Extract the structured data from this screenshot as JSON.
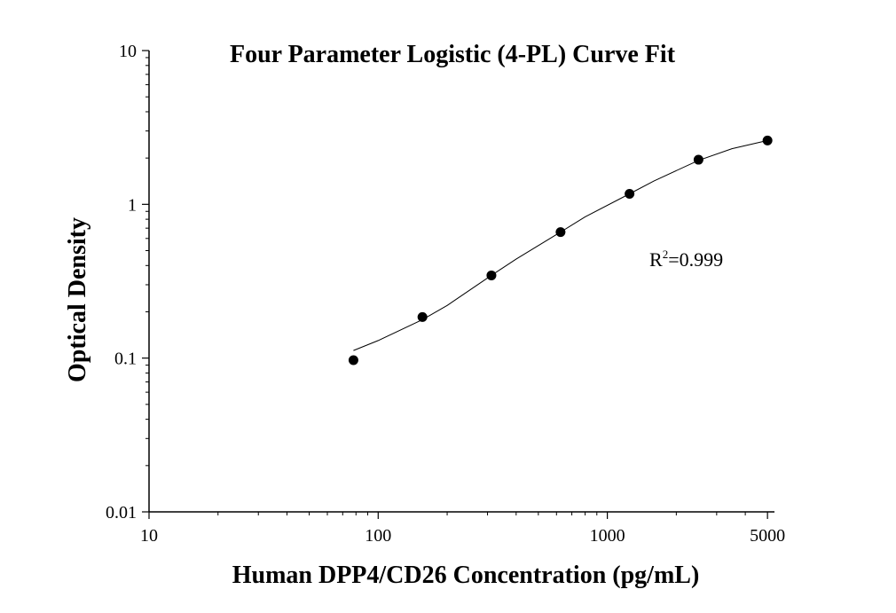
{
  "chart_data": {
    "type": "scatter",
    "title": "Four Parameter Logistic (4-PL) Curve Fit",
    "xlabel": "Human DPP4/CD26 Concentration (pg/mL)",
    "ylabel": "Optical Density",
    "x_scale": "log",
    "y_scale": "log",
    "xlim": [
      10,
      5000
    ],
    "ylim": [
      0.01,
      10
    ],
    "x_ticks": [
      10,
      100,
      1000,
      5000
    ],
    "x_tick_labels": [
      "10",
      "100",
      "1000",
      "5000"
    ],
    "y_ticks": [
      0.01,
      0.1,
      1,
      10
    ],
    "y_tick_labels": [
      "0.01",
      "0.1",
      "1",
      "10"
    ],
    "grid": false,
    "points": {
      "x": [
        78,
        156,
        312,
        625,
        1250,
        2500,
        5000
      ],
      "y": [
        0.097,
        0.185,
        0.345,
        0.66,
        1.17,
        1.95,
        2.6
      ]
    },
    "fit_curve": {
      "x": [
        78,
        100,
        156,
        200,
        312,
        400,
        625,
        800,
        1250,
        1600,
        2500,
        3500,
        5000
      ],
      "y": [
        0.112,
        0.13,
        0.178,
        0.22,
        0.345,
        0.44,
        0.66,
        0.83,
        1.17,
        1.42,
        1.93,
        2.3,
        2.6
      ]
    },
    "annotation": {
      "r_label": "R",
      "r_sup": "2",
      "r_value": "=0.999"
    },
    "colors": {
      "marker": "#000000",
      "line": "#000000",
      "axis": "#000000"
    }
  }
}
